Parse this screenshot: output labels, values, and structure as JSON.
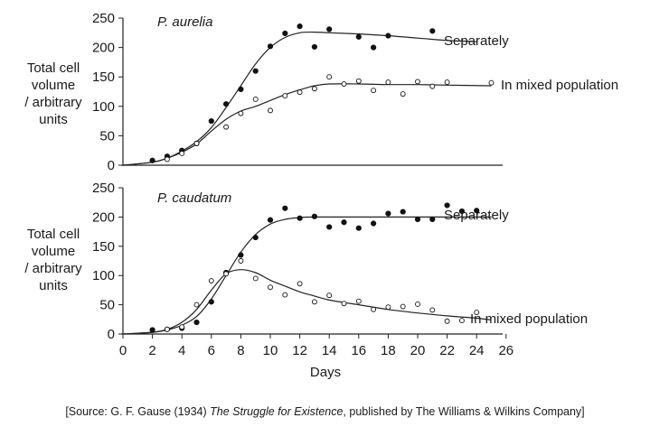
{
  "chart_data": [
    {
      "type": "scatter",
      "title": "P. aurelia",
      "ylabel": [
        "Total cell",
        "volume",
        "/ arbitrary",
        "units"
      ],
      "xlabel": "",
      "ylim": [
        0,
        250
      ],
      "xlim": [
        0,
        26
      ],
      "yticks": [
        "0",
        "50",
        "100",
        "150",
        "200",
        "250"
      ],
      "series": [
        {
          "name": "Separately",
          "marker": "filled",
          "points": [
            [
              2,
              8
            ],
            [
              3,
              15
            ],
            [
              4,
              25
            ],
            [
              5,
              37
            ],
            [
              6,
              75
            ],
            [
              7,
              104
            ],
            [
              8,
              129
            ],
            [
              9,
              160
            ],
            [
              10,
              202
            ],
            [
              11,
              224
            ],
            [
              12,
              236
            ],
            [
              13,
              201
            ],
            [
              14,
              231
            ],
            [
              16,
              218
            ],
            [
              17,
              200
            ],
            [
              18,
              220
            ],
            [
              21,
              228
            ]
          ],
          "curve": [
            [
              0,
              0
            ],
            [
              2,
              5
            ],
            [
              3,
              12
            ],
            [
              4,
              24
            ],
            [
              5,
              40
            ],
            [
              6,
              64
            ],
            [
              7,
              98
            ],
            [
              8,
              135
            ],
            [
              9,
              172
            ],
            [
              10,
              200
            ],
            [
              11,
              217
            ],
            [
              12,
              225
            ],
            [
              13,
              226
            ],
            [
              14,
              225
            ],
            [
              16,
              223
            ],
            [
              18,
              220
            ],
            [
              20,
              216
            ],
            [
              22,
              212
            ],
            [
              24,
              210
            ]
          ]
        },
        {
          "name": "In mixed population",
          "marker": "open",
          "points": [
            [
              3,
              10
            ],
            [
              4,
              20
            ],
            [
              5,
              37
            ],
            [
              7,
              65
            ],
            [
              8,
              88
            ],
            [
              9,
              112
            ],
            [
              10,
              93
            ],
            [
              11,
              118
            ],
            [
              12,
              124
            ],
            [
              13,
              130
            ],
            [
              14,
              150
            ],
            [
              15,
              138
            ],
            [
              16,
              143
            ],
            [
              17,
              127
            ],
            [
              18,
              141
            ],
            [
              19,
              121
            ],
            [
              20,
              142
            ],
            [
              21,
              134
            ],
            [
              22,
              141
            ],
            [
              25,
              140
            ]
          ],
          "curve": [
            [
              0,
              0
            ],
            [
              2,
              5
            ],
            [
              3,
              12
            ],
            [
              4,
              22
            ],
            [
              5,
              36
            ],
            [
              6,
              58
            ],
            [
              7,
              78
            ],
            [
              8,
              92
            ],
            [
              9,
              100
            ],
            [
              10,
              110
            ],
            [
              11,
              120
            ],
            [
              12,
              128
            ],
            [
              13,
              135
            ],
            [
              14,
              138
            ],
            [
              16,
              138
            ],
            [
              18,
              137
            ],
            [
              20,
              137
            ],
            [
              22,
              136
            ],
            [
              25,
              135
            ]
          ]
        }
      ]
    },
    {
      "type": "scatter",
      "title": "P. caudatum",
      "ylabel": [
        "Total cell",
        "volume",
        "/ arbitrary",
        "units"
      ],
      "xlabel": "Days",
      "ylim": [
        0,
        250
      ],
      "xlim": [
        0,
        26
      ],
      "yticks": [
        "0",
        "50",
        "100",
        "150",
        "200",
        "250"
      ],
      "xticks": [
        "0",
        "2",
        "4",
        "6",
        "8",
        "10",
        "12",
        "14",
        "16",
        "18",
        "20",
        "22",
        "24",
        "26"
      ],
      "series": [
        {
          "name": "Separately",
          "marker": "filled",
          "points": [
            [
              2,
              7
            ],
            [
              3,
              8
            ],
            [
              4,
              10
            ],
            [
              5,
              20
            ],
            [
              6,
              55
            ],
            [
              7,
              105
            ],
            [
              8,
              135
            ],
            [
              9,
              165
            ],
            [
              10,
              195
            ],
            [
              11,
              215
            ],
            [
              12,
              198
            ],
            [
              13,
              201
            ],
            [
              14,
              183
            ],
            [
              15,
              191
            ],
            [
              16,
              181
            ],
            [
              17,
              189
            ],
            [
              18,
              206
            ],
            [
              19,
              209
            ],
            [
              20,
              196
            ],
            [
              21,
              196
            ],
            [
              22,
              220
            ],
            [
              23,
              210
            ],
            [
              24,
              211
            ]
          ],
          "curve": [
            [
              0,
              0
            ],
            [
              2,
              3
            ],
            [
              3,
              7
            ],
            [
              4,
              15
            ],
            [
              5,
              30
            ],
            [
              6,
              60
            ],
            [
              7,
              100
            ],
            [
              8,
              140
            ],
            [
              9,
              170
            ],
            [
              10,
              188
            ],
            [
              11,
              196
            ],
            [
              12,
              199
            ],
            [
              13,
              200
            ],
            [
              16,
              200
            ],
            [
              20,
              200
            ],
            [
              25,
              200
            ]
          ]
        },
        {
          "name": "In mixed population",
          "marker": "open",
          "points": [
            [
              3,
              8
            ],
            [
              4,
              12
            ],
            [
              5,
              50
            ],
            [
              6,
              91
            ],
            [
              7,
              103
            ],
            [
              8,
              125
            ],
            [
              9,
              95
            ],
            [
              10,
              80
            ],
            [
              11,
              67
            ],
            [
              12,
              86
            ],
            [
              13,
              55
            ],
            [
              14,
              66
            ],
            [
              15,
              52
            ],
            [
              16,
              56
            ],
            [
              17,
              42
            ],
            [
              18,
              46
            ],
            [
              19,
              47
            ],
            [
              20,
              51
            ],
            [
              21,
              41
            ],
            [
              22,
              22
            ],
            [
              23,
              23
            ],
            [
              24,
              37
            ]
          ],
          "curve": [
            [
              0,
              0
            ],
            [
              2,
              3
            ],
            [
              3,
              8
            ],
            [
              4,
              20
            ],
            [
              5,
              42
            ],
            [
              6,
              75
            ],
            [
              7,
              103
            ],
            [
              8,
              110
            ],
            [
              9,
              105
            ],
            [
              10,
              92
            ],
            [
              11,
              82
            ],
            [
              12,
              72
            ],
            [
              13,
              65
            ],
            [
              14,
              58
            ],
            [
              16,
              50
            ],
            [
              18,
              42
            ],
            [
              20,
              36
            ],
            [
              22,
              31
            ],
            [
              24,
              27
            ],
            [
              25,
              24
            ]
          ]
        }
      ]
    }
  ],
  "source_prefix": "[Source: G. F. Gause (1934) ",
  "source_title": "The Struggle for Existence",
  "source_suffix": ", published by The Williams & Wilkins Company]"
}
